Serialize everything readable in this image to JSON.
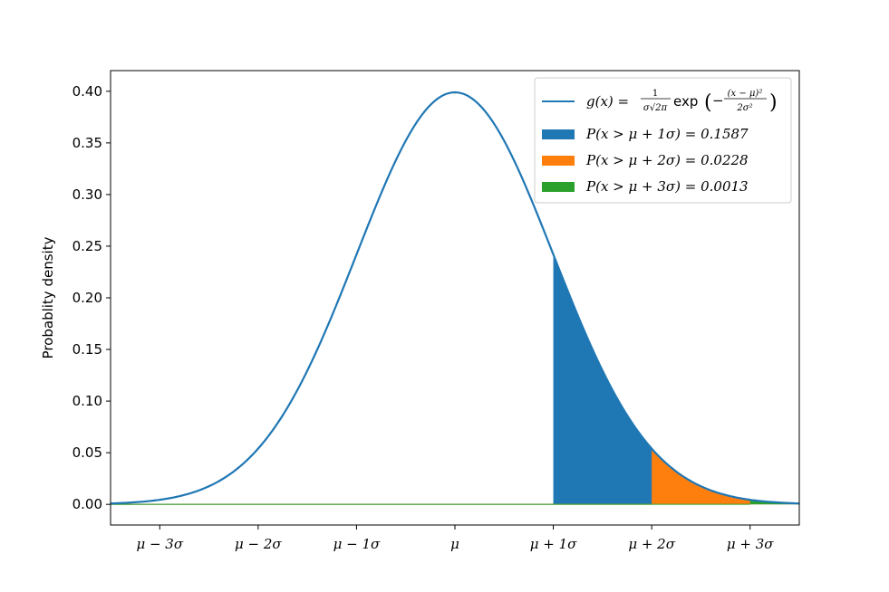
{
  "chart_data": {
    "type": "area",
    "ylabel": "Probablity density",
    "xlim": [
      -3.5,
      3.5
    ],
    "ylim": [
      -0.02,
      0.42
    ],
    "mu": 0,
    "sigma": 1,
    "x_ticks": [
      {
        "value": -3,
        "label": "μ − 3σ"
      },
      {
        "value": -2,
        "label": "μ − 2σ"
      },
      {
        "value": -1,
        "label": "μ − 1σ"
      },
      {
        "value": 0,
        "label": "μ"
      },
      {
        "value": 1,
        "label": "μ + 1σ"
      },
      {
        "value": 2,
        "label": "μ + 2σ"
      },
      {
        "value": 3,
        "label": "μ + 3σ"
      }
    ],
    "y_ticks": [
      {
        "value": 0.0,
        "label": "0.00"
      },
      {
        "value": 0.05,
        "label": "0.05"
      },
      {
        "value": 0.1,
        "label": "0.10"
      },
      {
        "value": 0.15,
        "label": "0.15"
      },
      {
        "value": 0.2,
        "label": "0.20"
      },
      {
        "value": 0.25,
        "label": "0.25"
      },
      {
        "value": 0.3,
        "label": "0.30"
      },
      {
        "value": 0.35,
        "label": "0.35"
      },
      {
        "value": 0.4,
        "label": "0.40"
      }
    ],
    "curve": {
      "formula": "g(x) = 1/(σ√(2π)) exp(−(x−μ)²/(2σ²))",
      "color": "#1f77b4",
      "x_range": [
        -3.5,
        3.5
      ]
    },
    "areas": [
      {
        "x_from": 1,
        "x_to": 3.5,
        "probability": 0.1587,
        "label": "P(x > μ + 1σ) = 0.1587",
        "color": "#1f77b4"
      },
      {
        "x_from": 2,
        "x_to": 3.5,
        "probability": 0.0228,
        "label": "P(x > μ + 2σ) = 0.0228",
        "color": "#ff7f0e"
      },
      {
        "x_from": 3,
        "x_to": 3.5,
        "probability": 0.0013,
        "label": "P(x > μ + 3σ) = 0.0013",
        "color": "#2ca02c"
      }
    ],
    "legend": {
      "location": "upper right",
      "entries": [
        {
          "kind": "line",
          "text_left": "g(x) = ",
          "frac_num": "1",
          "frac_den": "σ√2π",
          "text_mid": "exp",
          "exp_num": "(x − μ)²",
          "exp_den": "2σ²",
          "color": "#1f77b4"
        },
        {
          "kind": "patch",
          "text": "P(x > μ + 1σ) = 0.1587",
          "color": "#1f77b4"
        },
        {
          "kind": "patch",
          "text": "P(x > μ + 2σ) = 0.0228",
          "color": "#ff7f0e"
        },
        {
          "kind": "patch",
          "text": "P(x > μ + 3σ) = 0.0013",
          "color": "#2ca02c"
        }
      ]
    },
    "grid": false
  }
}
